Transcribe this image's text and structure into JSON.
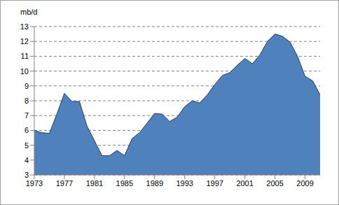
{
  "chart_data": {
    "type": "area",
    "y_label": "mb/d",
    "x": [
      1973,
      1974,
      1975,
      1976,
      1977,
      1978,
      1979,
      1980,
      1981,
      1982,
      1983,
      1984,
      1985,
      1986,
      1987,
      1988,
      1989,
      1990,
      1991,
      1992,
      1993,
      1994,
      1995,
      1996,
      1997,
      1998,
      1999,
      2000,
      2001,
      2002,
      2003,
      2004,
      2005,
      2006,
      2007,
      2008,
      2009,
      2010,
      2011
    ],
    "values": [
      6.0,
      5.85,
      5.8,
      7.1,
      8.5,
      7.95,
      7.95,
      6.3,
      5.3,
      4.3,
      4.3,
      4.65,
      4.3,
      5.45,
      5.85,
      6.5,
      7.15,
      7.1,
      6.6,
      6.9,
      7.6,
      8.0,
      7.85,
      8.4,
      9.1,
      9.7,
      9.9,
      10.4,
      10.85,
      10.5,
      11.1,
      12.0,
      12.5,
      12.35,
      11.95,
      11.0,
      9.65,
      9.35,
      8.4
    ],
    "color": "#4f81bd",
    "xlim": [
      1973,
      2011
    ],
    "xticks": [
      1973,
      1977,
      1981,
      1985,
      1989,
      1993,
      1997,
      2001,
      2005,
      2009
    ],
    "ylim": [
      3,
      13
    ],
    "yticks": [
      3,
      4,
      5,
      6,
      7,
      8,
      9,
      10,
      11,
      12,
      13
    ],
    "grid": true
  }
}
